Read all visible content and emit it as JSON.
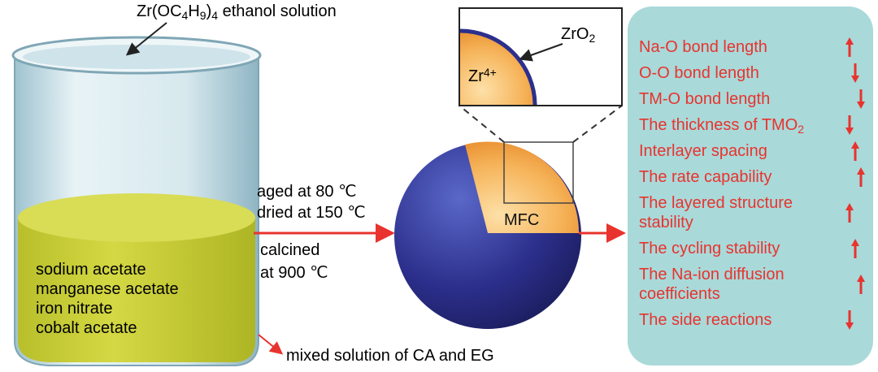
{
  "beaker": {
    "label": [
      {
        "text": "Zr(OC"
      },
      {
        "text": "4",
        "sub": true
      },
      {
        "text": "H"
      },
      {
        "text": "9",
        "sub": true
      },
      {
        "text": ")"
      },
      {
        "text": "4",
        "sub": true
      },
      {
        "text": " ethanol solution"
      }
    ],
    "ingredients": [
      "sodium acetate",
      "manganese acetate",
      "iron nitrate",
      "cobalt acetate"
    ],
    "mixed": "mixed solution of CA and EG"
  },
  "process": {
    "steps": [
      "aged at 80 ℃",
      "dried at 150 ℃",
      "calcined",
      "at 900 ℃"
    ]
  },
  "particle": {
    "label": "MFC",
    "zoom_core": [
      {
        "text": "Zr"
      },
      {
        "text": "4+",
        "sup": true
      }
    ],
    "zoom_shell": [
      {
        "text": "ZrO"
      },
      {
        "text": "2",
        "sub": true
      }
    ]
  },
  "effects": [
    {
      "lines": [
        [
          {
            "text": "Na-O bond length"
          }
        ]
      ],
      "trend": "up"
    },
    {
      "lines": [
        [
          {
            "text": "O-O bond length"
          }
        ]
      ],
      "trend": "down"
    },
    {
      "lines": [
        [
          {
            "text": "TM-O bond length"
          }
        ]
      ],
      "trend": "down"
    },
    {
      "lines": [
        [
          {
            "text": "The thickness of TMO"
          },
          {
            "text": "2",
            "sub": true
          }
        ]
      ],
      "trend": "down"
    },
    {
      "lines": [
        [
          {
            "text": "Interlayer spacing"
          }
        ]
      ],
      "trend": "up"
    },
    {
      "lines": [
        [
          {
            "text": "The rate capability"
          }
        ]
      ],
      "trend": "up"
    },
    {
      "lines": [
        [
          {
            "text": "The layered structure"
          }
        ],
        [
          {
            "text": "stability"
          }
        ]
      ],
      "trend": "up"
    },
    {
      "lines": [
        [
          {
            "text": "The cycling stability"
          }
        ]
      ],
      "trend": "up"
    },
    {
      "lines": [
        [
          {
            "text": "The Na-ion diffusion"
          }
        ],
        [
          {
            "text": "coefficients"
          }
        ]
      ],
      "trend": "up"
    },
    {
      "lines": [
        [
          {
            "text": "The side reactions"
          }
        ]
      ],
      "trend": "down"
    }
  ]
}
